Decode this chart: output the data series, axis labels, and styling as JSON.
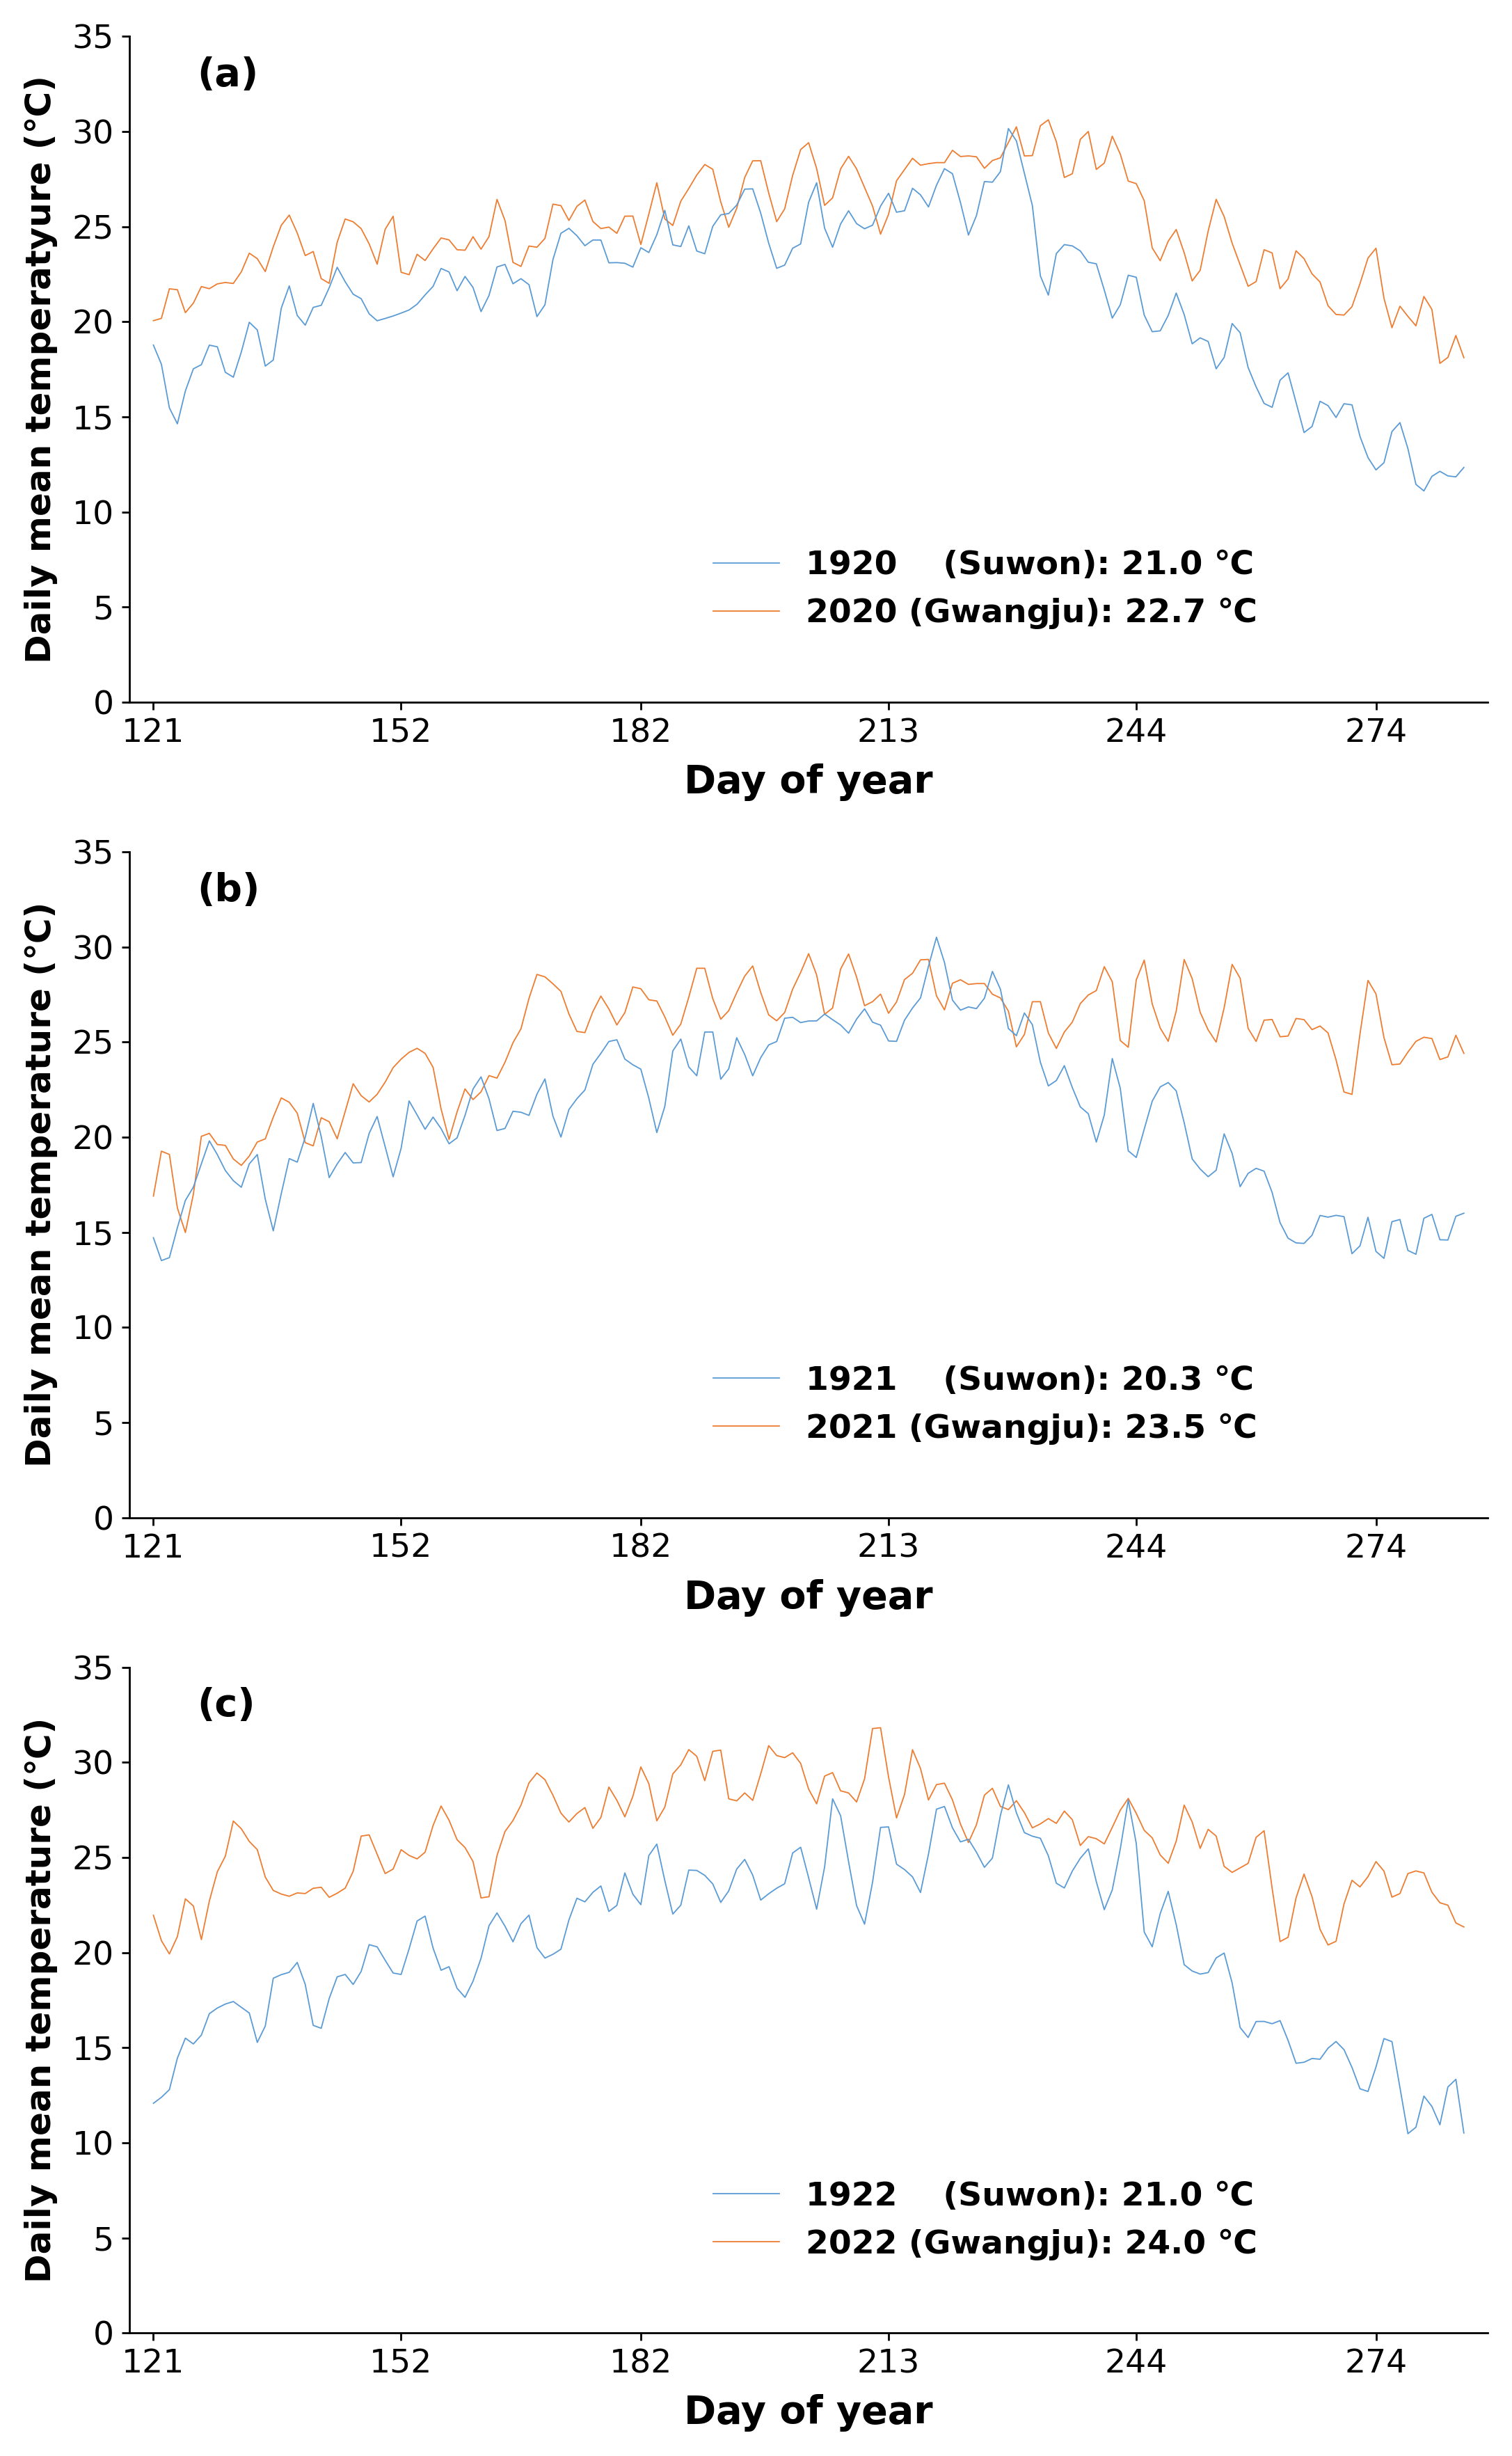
{
  "panels": [
    {
      "label": "(a)",
      "legend1": "1920    (Suwon): 21.0 ℃",
      "legend2": "2020 (Gwangju): 22.7 ℃",
      "color1": "#5B9BD5",
      "color2": "#ED7D31",
      "ylabel": "Daily mean temperatyure (℃)"
    },
    {
      "label": "(b)",
      "legend1": "1921    (Suwon): 20.3 ℃",
      "legend2": "2021 (Gwangju): 23.5 ℃",
      "color1": "#5B9BD5",
      "color2": "#ED7D31",
      "ylabel": "Daily mean temperature (℃)"
    },
    {
      "label": "(c)",
      "legend1": "1922    (Suwon): 21.0 ℃",
      "legend2": "2022 (Gwangju): 24.0 ℃",
      "color1": "#5B9BD5",
      "color2": "#ED7D31",
      "ylabel": "Daily mean temperature (℃)"
    }
  ],
  "xlabel": "Day of year",
  "xlim": [
    118,
    288
  ],
  "ylim": [
    0,
    35
  ],
  "yticks": [
    0,
    5,
    10,
    15,
    20,
    25,
    30,
    35
  ],
  "xticks": [
    121,
    152,
    182,
    213,
    244,
    274
  ],
  "day_start": 121,
  "day_end": 285,
  "background_color": "#ffffff",
  "line_width": 1.3
}
